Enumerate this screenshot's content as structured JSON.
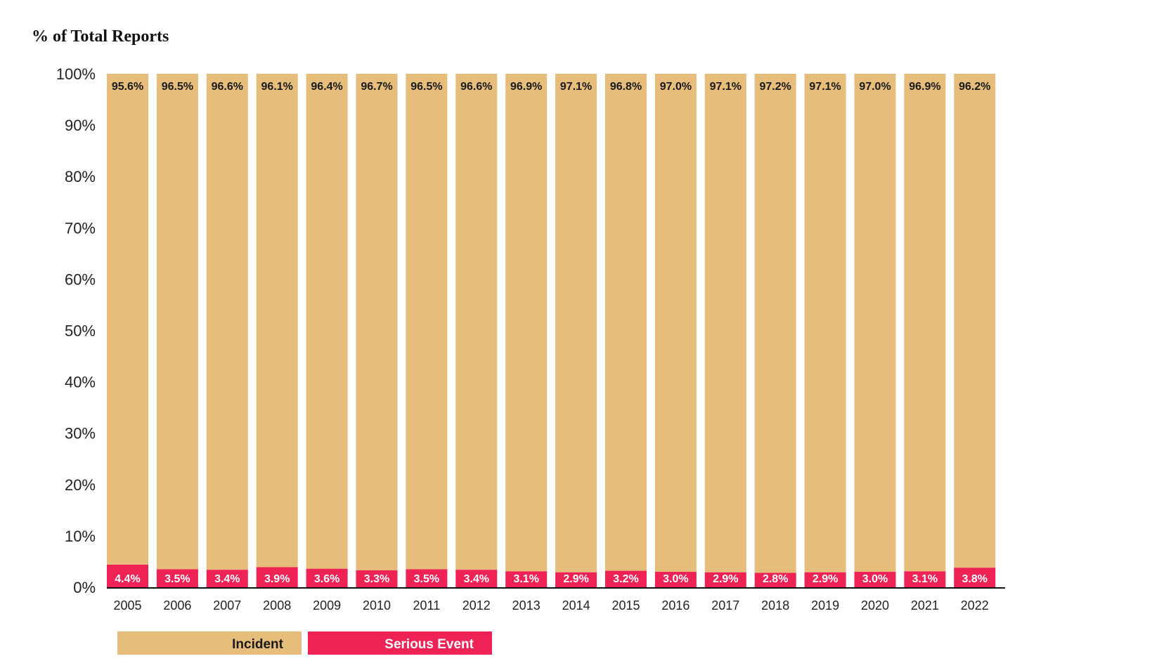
{
  "chart_data": {
    "type": "bar",
    "stacked": true,
    "title": "% of Total Reports",
    "categories": [
      "2005",
      "2006",
      "2007",
      "2008",
      "2009",
      "2010",
      "2011",
      "2012",
      "2013",
      "2014",
      "2015",
      "2016",
      "2017",
      "2018",
      "2019",
      "2020",
      "2021",
      "2022"
    ],
    "series": [
      {
        "name": "Serious Event",
        "color": "#ee2255",
        "values": [
          4.4,
          3.5,
          3.4,
          3.9,
          3.6,
          3.3,
          3.5,
          3.4,
          3.1,
          2.9,
          3.2,
          3.0,
          2.9,
          2.8,
          2.9,
          3.0,
          3.1,
          3.8
        ],
        "labels": [
          "4.4%",
          "3.5%",
          "3.4%",
          "3.9%",
          "3.6%",
          "3.3%",
          "3.5%",
          "3.4%",
          "3.1%",
          "2.9%",
          "3.2%",
          "3.0%",
          "2.9%",
          "2.8%",
          "2.9%",
          "3.0%",
          "3.1%",
          "3.8%"
        ]
      },
      {
        "name": "Incident",
        "color": "#e6bd7a",
        "values": [
          95.6,
          96.5,
          96.6,
          96.1,
          96.4,
          96.7,
          96.5,
          96.6,
          96.9,
          97.1,
          96.8,
          97.0,
          97.1,
          97.2,
          97.1,
          97.0,
          96.9,
          96.2
        ],
        "labels": [
          "95.6%",
          "96.5%",
          "96.6%",
          "96.1%",
          "96.4%",
          "96.7%",
          "96.5%",
          "96.6%",
          "96.9%",
          "97.1%",
          "96.8%",
          "97.0%",
          "97.1%",
          "97.2%",
          "97.1%",
          "97.0%",
          "96.9%",
          "96.2%"
        ]
      }
    ],
    "ylim": [
      0,
      100
    ],
    "yticks": [
      "0%",
      "10%",
      "20%",
      "30%",
      "40%",
      "50%",
      "60%",
      "70%",
      "80%",
      "90%",
      "100%"
    ],
    "grid": false,
    "legend": {
      "position": "bottom-left",
      "items": [
        "Incident",
        "Serious Event"
      ]
    }
  }
}
